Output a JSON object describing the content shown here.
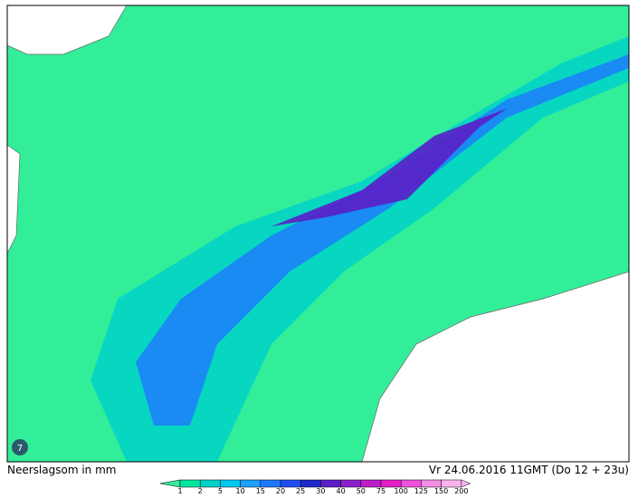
{
  "map": {
    "caption_left": "Neerslagsom in mm",
    "caption_right": "Vr 24.06.2016 11GMT (Do 12 + 23u)",
    "logo": "7",
    "legend": {
      "ticks": [
        1,
        2,
        5,
        10,
        15,
        20,
        25,
        30,
        40,
        50,
        75,
        100,
        125,
        150,
        200
      ],
      "colors": [
        "#33ee99",
        "#00e6a0",
        "#00d2c8",
        "#00c8f0",
        "#1ea0ff",
        "#1e78ff",
        "#1e50f0",
        "#1e28c8",
        "#5a1ec8",
        "#8c1ec8",
        "#be1ec8",
        "#e61ec8",
        "#f050dc",
        "#f58ce6",
        "#fab4f0"
      ]
    }
  }
}
